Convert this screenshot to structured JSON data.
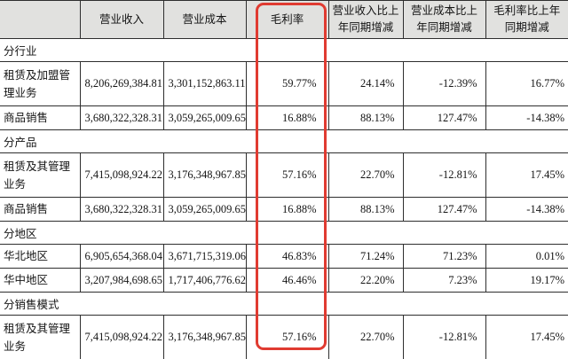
{
  "table": {
    "columns": [
      {
        "label": ""
      },
      {
        "label": "营业收入"
      },
      {
        "label": "营业成本"
      },
      {
        "label": "毛利率"
      },
      {
        "label": "营业收入比上年同期增减"
      },
      {
        "label": "营业成本比上年同期增减"
      },
      {
        "label": "毛利率比上年同期增减"
      }
    ],
    "sections": [
      {
        "label": "分行业",
        "rows": [
          {
            "label": "租赁及加盟管理业务",
            "revenue": "8,206,269,384.81",
            "cost": "3,301,152,863.11",
            "margin": "59.77%",
            "revenue_yoy": "24.14%",
            "cost_yoy": "-12.39%",
            "margin_yoy": "16.77%"
          },
          {
            "label": "商品销售",
            "revenue": "3,680,322,328.31",
            "cost": "3,059,265,009.65",
            "margin": "16.88%",
            "revenue_yoy": "88.13%",
            "cost_yoy": "127.47%",
            "margin_yoy": "-14.38%"
          }
        ]
      },
      {
        "label": "分产品",
        "rows": [
          {
            "label": "租赁及其管理业务",
            "revenue": "7,415,098,924.22",
            "cost": "3,176,348,967.85",
            "margin": "57.16%",
            "revenue_yoy": "22.70%",
            "cost_yoy": "-12.81%",
            "margin_yoy": "17.45%"
          },
          {
            "label": "商品销售",
            "revenue": "3,680,322,328.31",
            "cost": "3,059,265,009.65",
            "margin": "16.88%",
            "revenue_yoy": "88.13%",
            "cost_yoy": "127.47%",
            "margin_yoy": "-14.38%"
          }
        ]
      },
      {
        "label": "分地区",
        "rows": [
          {
            "label": "华北地区",
            "revenue": "6,905,654,368.04",
            "cost": "3,671,715,319.06",
            "margin": "46.83%",
            "revenue_yoy": "71.24%",
            "cost_yoy": "71.23%",
            "margin_yoy": "0.01%"
          },
          {
            "label": "华中地区",
            "revenue": "3,207,984,698.65",
            "cost": "1,717,406,776.62",
            "margin": "46.46%",
            "revenue_yoy": "22.20%",
            "cost_yoy": "7.23%",
            "margin_yoy": "19.17%"
          }
        ]
      },
      {
        "label": "分销售模式",
        "rows": [
          {
            "label": "租赁及其管理业务",
            "revenue": "7,415,098,924.22",
            "cost": "3,176,348,967.85",
            "margin": "57.16%",
            "revenue_yoy": "22.70%",
            "cost_yoy": "-12.81%",
            "margin_yoy": "17.45%"
          }
        ]
      }
    ]
  },
  "highlight": {
    "color": "#e03b31",
    "target_column": "毛利率"
  }
}
